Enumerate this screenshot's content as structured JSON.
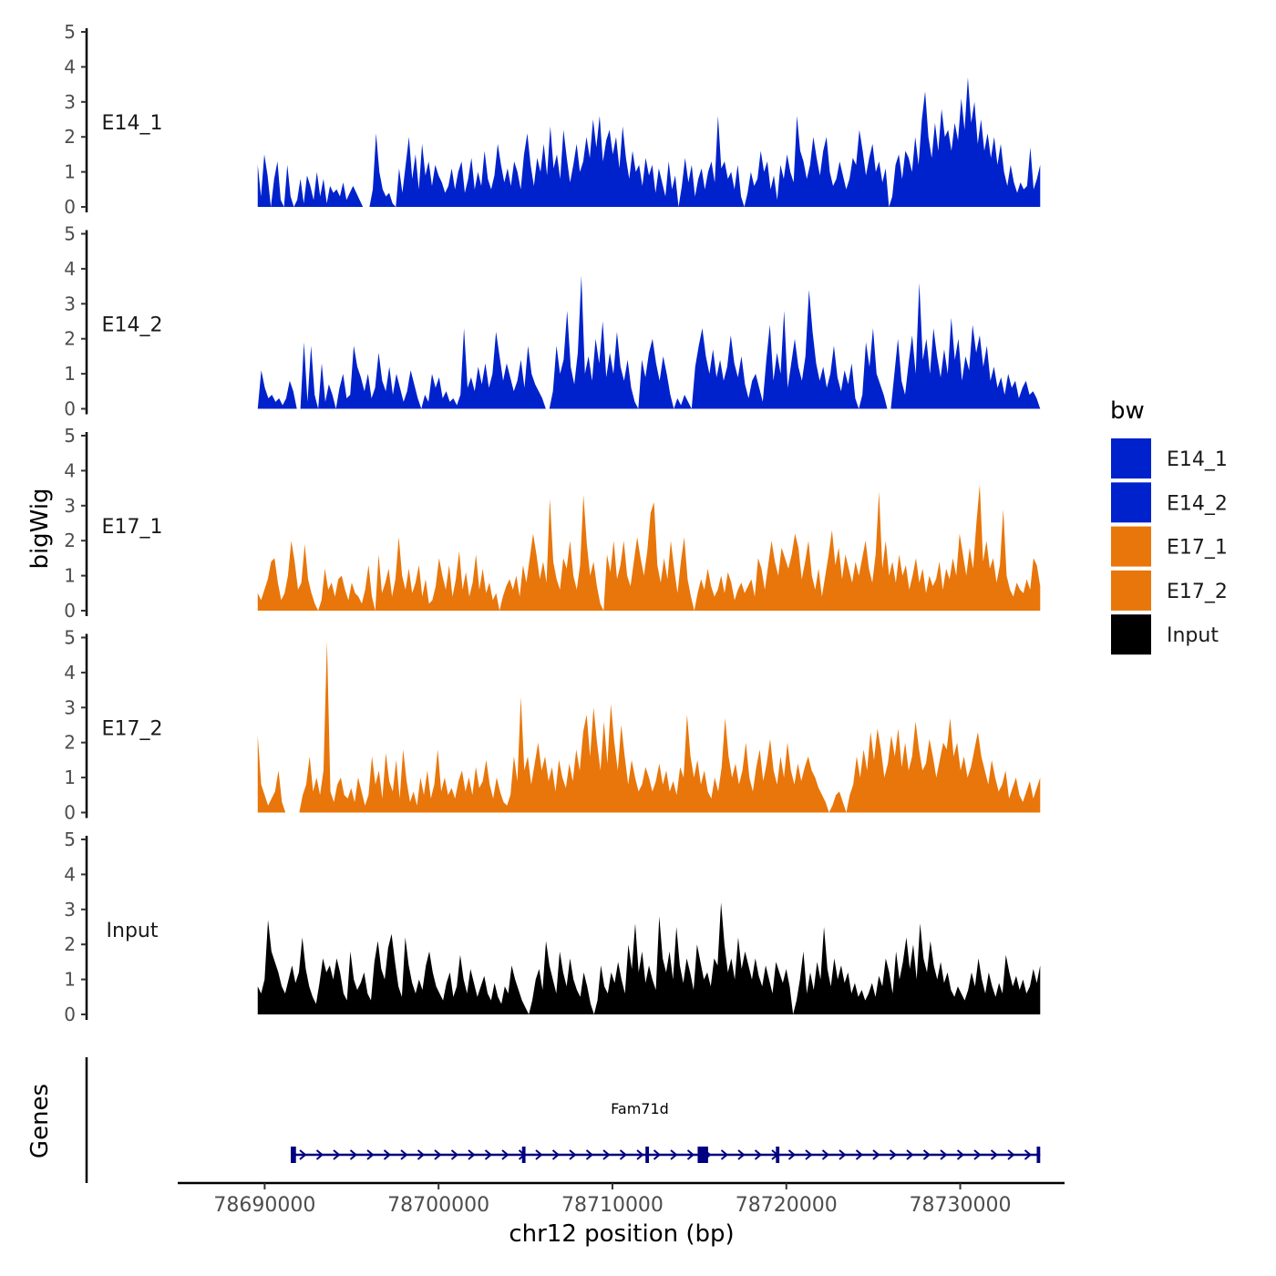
{
  "chart_data": {
    "type": "area",
    "y_axis_title": "bigWig",
    "x_axis_title": "chr12 position (bp)",
    "genes_axis_title": "Genes",
    "x_range": [
      78685000,
      78736000
    ],
    "x_ticks": [
      78690000,
      78700000,
      78710000,
      78720000,
      78730000
    ],
    "x_tick_labels": [
      "78690000",
      "78700000",
      "78710000",
      "78720000",
      "78730000"
    ],
    "y_range": [
      0,
      5
    ],
    "y_ticks": [
      0,
      1,
      2,
      3,
      4,
      5
    ],
    "y_tick_labels": [
      "0",
      "1",
      "2",
      "3",
      "4",
      "5"
    ],
    "legend": {
      "title": "bw",
      "entries": [
        {
          "name": "E14_1",
          "color": "#0022CC"
        },
        {
          "name": "E14_2",
          "color": "#0022CC"
        },
        {
          "name": "E17_1",
          "color": "#E8760A"
        },
        {
          "name": "E17_2",
          "color": "#E8760A"
        },
        {
          "name": "Input",
          "color": "#000000"
        }
      ]
    },
    "tracks": [
      {
        "name": "E14_1",
        "label": "E14_1",
        "color": "#0022CC",
        "x_start": 78689600,
        "x_end": 78734600,
        "values": [
          1.2,
          0.3,
          1.5,
          0.9,
          0.0,
          0.8,
          1.3,
          0.2,
          0.0,
          1.2,
          0.3,
          0.0,
          0.2,
          0.8,
          0.1,
          0.9,
          0.6,
          0.2,
          1.0,
          0.3,
          0.8,
          0.1,
          0.6,
          0.4,
          0.5,
          0.3,
          0.7,
          0.2,
          0.4,
          0.6,
          0.4,
          0.2,
          0.0,
          0.0,
          0.0,
          0.5,
          2.1,
          1.0,
          0.5,
          0.3,
          0.4,
          0.1,
          0.0,
          1.1,
          0.4,
          1.2,
          2.0,
          0.8,
          1.5,
          0.5,
          1.8,
          0.9,
          1.3,
          0.6,
          1.2,
          0.9,
          0.7,
          0.4,
          0.6,
          1.1,
          0.5,
          1.0,
          1.3,
          0.4,
          0.8,
          1.4,
          0.5,
          1.0,
          0.6,
          1.6,
          0.8,
          0.5,
          0.9,
          1.8,
          1.2,
          0.7,
          1.1,
          0.6,
          1.3,
          1.0,
          0.5,
          1.5,
          2.1,
          1.2,
          0.6,
          1.4,
          1.0,
          1.8,
          0.9,
          2.3,
          1.1,
          1.5,
          0.8,
          2.2,
          1.4,
          0.7,
          1.2,
          1.8,
          1.0,
          1.3,
          2.0,
          1.4,
          2.5,
          1.7,
          2.6,
          1.3,
          1.9,
          2.2,
          1.5,
          2.0,
          1.1,
          2.3,
          1.4,
          0.8,
          1.6,
          1.0,
          1.2,
          0.6,
          1.4,
          0.9,
          1.2,
          0.4,
          1.1,
          0.7,
          0.3,
          1.3,
          0.5,
          0.9,
          0.0,
          0.6,
          1.4,
          0.7,
          1.2,
          0.3,
          0.8,
          1.1,
          0.5,
          1.0,
          1.3,
          0.7,
          2.6,
          1.1,
          1.3,
          0.8,
          1.0,
          0.5,
          1.2,
          0.3,
          0.0,
          0.4,
          1.0,
          0.6,
          0.8,
          1.6,
          1.0,
          1.3,
          0.5,
          0.9,
          0.2,
          1.2,
          0.8,
          1.5,
          1.0,
          0.7,
          2.6,
          1.6,
          1.3,
          0.8,
          1.2,
          2.0,
          1.4,
          0.9,
          1.6,
          2.0,
          1.0,
          0.6,
          0.8,
          1.3,
          0.9,
          0.5,
          0.8,
          1.4,
          1.2,
          2.2,
          1.6,
          0.9,
          1.4,
          1.8,
          1.0,
          1.3,
          0.7,
          1.1,
          0.0,
          0.3,
          1.2,
          1.5,
          0.8,
          1.6,
          1.4,
          1.0,
          2.0,
          1.2,
          2.5,
          3.3,
          2.0,
          1.4,
          2.4,
          1.6,
          2.8,
          2.0,
          2.2,
          1.6,
          2.4,
          1.9,
          3.1,
          2.2,
          3.7,
          2.4,
          3.0,
          1.8,
          2.5,
          1.6,
          2.1,
          1.4,
          2.0,
          1.2,
          1.8,
          1.0,
          0.6,
          1.2,
          0.7,
          0.4,
          0.7,
          0.5,
          0.6,
          1.7,
          0.5,
          0.8,
          1.2
        ]
      },
      {
        "name": "E14_2",
        "label": "E14_2",
        "color": "#0022CC",
        "x_start": 78689600,
        "x_end": 78734600,
        "values": [
          0.0,
          1.1,
          0.6,
          0.3,
          0.4,
          0.2,
          0.3,
          0.1,
          0.3,
          0.8,
          0.5,
          0.0,
          0.0,
          1.9,
          0.2,
          1.8,
          0.4,
          0.0,
          1.3,
          0.2,
          0.7,
          0.4,
          0.0,
          0.6,
          1.0,
          0.3,
          0.4,
          1.8,
          1.2,
          0.9,
          0.5,
          1.0,
          0.3,
          0.6,
          1.6,
          0.8,
          0.5,
          1.2,
          0.4,
          1.0,
          0.6,
          0.2,
          0.5,
          1.1,
          0.7,
          0.3,
          0.0,
          0.4,
          0.2,
          1.0,
          0.6,
          0.9,
          0.3,
          0.5,
          0.2,
          0.3,
          0.1,
          0.4,
          2.3,
          0.6,
          0.9,
          0.5,
          1.2,
          0.7,
          1.3,
          0.6,
          1.0,
          2.2,
          1.5,
          0.8,
          1.3,
          0.9,
          0.5,
          0.8,
          1.4,
          0.6,
          1.8,
          1.0,
          0.7,
          0.5,
          0.3,
          0.0,
          0.0,
          0.5,
          1.8,
          1.0,
          1.4,
          2.8,
          1.2,
          0.7,
          1.6,
          3.8,
          1.0,
          1.5,
          0.8,
          2.0,
          1.3,
          2.5,
          0.9,
          1.6,
          1.0,
          2.2,
          1.2,
          0.8,
          1.4,
          0.6,
          0.2,
          0.0,
          1.4,
          0.9,
          1.6,
          2.0,
          1.3,
          0.8,
          1.5,
          1.0,
          0.4,
          0.0,
          0.3,
          0.1,
          0.4,
          0.2,
          0.0,
          1.2,
          1.8,
          2.3,
          1.5,
          1.0,
          1.7,
          0.9,
          1.4,
          0.8,
          1.2,
          2.1,
          1.3,
          0.9,
          1.5,
          0.7,
          0.3,
          0.8,
          1.0,
          0.6,
          0.2,
          1.4,
          2.4,
          0.8,
          1.6,
          1.0,
          2.8,
          0.6,
          1.3,
          2.0,
          1.2,
          0.8,
          1.5,
          3.4,
          2.2,
          1.3,
          0.8,
          1.2,
          0.6,
          1.0,
          1.8,
          0.9,
          0.5,
          1.1,
          0.7,
          1.3,
          0.3,
          0.0,
          0.4,
          1.9,
          1.2,
          2.3,
          1.0,
          0.7,
          0.4,
          0.0,
          0.0,
          1.0,
          2.0,
          0.8,
          0.4,
          1.3,
          2.1,
          1.0,
          3.6,
          1.4,
          2.0,
          1.0,
          2.3,
          1.5,
          0.9,
          1.7,
          1.0,
          2.6,
          1.4,
          2.0,
          0.8,
          1.5,
          1.1,
          2.4,
          1.6,
          2.1,
          1.2,
          1.8,
          0.8,
          1.2,
          0.6,
          0.9,
          0.4,
          1.0,
          0.6,
          0.8,
          0.3,
          0.6,
          0.8,
          0.4,
          0.5,
          0.3,
          0.0
        ]
      },
      {
        "name": "E17_1",
        "label": "E17_1",
        "color": "#E8760A",
        "x_start": 78689600,
        "x_end": 78734600,
        "values": [
          0.5,
          0.3,
          0.6,
          0.9,
          1.4,
          1.5,
          0.8,
          0.3,
          0.5,
          1.0,
          2.0,
          1.4,
          0.6,
          0.8,
          1.9,
          0.9,
          0.5,
          0.2,
          0.0,
          0.3,
          1.2,
          0.6,
          0.8,
          0.4,
          0.9,
          1.0,
          0.6,
          0.3,
          0.8,
          0.5,
          0.4,
          0.2,
          0.6,
          1.3,
          0.4,
          0.0,
          1.6,
          0.5,
          0.8,
          1.2,
          0.4,
          0.9,
          2.1,
          1.0,
          0.6,
          1.2,
          0.5,
          0.8,
          1.3,
          0.4,
          0.9,
          0.2,
          0.3,
          0.7,
          1.5,
          1.0,
          0.6,
          1.3,
          0.4,
          0.9,
          1.7,
          0.6,
          1.1,
          0.4,
          0.8,
          1.6,
          0.6,
          1.2,
          0.5,
          0.8,
          0.3,
          0.5,
          0.0,
          0.4,
          0.7,
          0.9,
          0.6,
          1.0,
          0.4,
          1.3,
          0.8,
          1.5,
          2.2,
          1.6,
          0.9,
          1.4,
          0.8,
          3.2,
          1.4,
          0.9,
          0.6,
          1.5,
          1.2,
          2.0,
          1.0,
          0.6,
          1.3,
          3.3,
          1.9,
          1.0,
          1.4,
          0.7,
          0.2,
          0.0,
          1.6,
          1.1,
          2.0,
          0.9,
          1.3,
          2.0,
          1.0,
          0.7,
          1.4,
          2.1,
          1.5,
          1.0,
          1.7,
          2.8,
          3.1,
          1.3,
          0.8,
          1.5,
          0.9,
          2.0,
          1.2,
          0.5,
          1.4,
          2.1,
          0.9,
          0.4,
          0.0,
          0.5,
          0.9,
          0.6,
          1.2,
          0.7,
          0.4,
          0.6,
          1.0,
          0.5,
          1.1,
          0.8,
          0.3,
          0.6,
          0.8,
          0.5,
          0.7,
          0.9,
          0.4,
          1.5,
          1.2,
          0.6,
          1.3,
          2.0,
          1.4,
          1.0,
          1.8,
          1.5,
          1.2,
          1.6,
          2.2,
          1.8,
          0.9,
          1.4,
          2.0,
          1.0,
          0.6,
          1.2,
          0.4,
          1.0,
          1.6,
          2.3,
          1.3,
          1.8,
          0.9,
          1.6,
          1.2,
          0.8,
          1.4,
          1.0,
          1.5,
          2.0,
          1.2,
          0.8,
          1.6,
          3.4,
          1.2,
          2.0,
          1.0,
          1.4,
          0.8,
          1.6,
          1.0,
          1.3,
          0.6,
          1.0,
          1.5,
          0.8,
          1.2,
          0.5,
          1.0,
          0.7,
          0.9,
          1.4,
          0.6,
          1.2,
          0.9,
          1.5,
          1.0,
          2.2,
          1.6,
          1.0,
          1.8,
          1.2,
          2.5,
          3.6,
          1.4,
          2.0,
          1.2,
          1.5,
          0.8,
          1.3,
          2.9,
          1.0,
          0.6,
          0.4,
          0.8,
          0.6,
          0.5,
          0.9,
          0.6,
          1.5,
          1.3,
          0.7
        ]
      },
      {
        "name": "E17_2",
        "label": "E17_2",
        "color": "#E8760A",
        "x_start": 78689600,
        "x_end": 78734600,
        "values": [
          2.2,
          0.8,
          0.5,
          0.2,
          0.4,
          0.6,
          1.2,
          0.3,
          0.0,
          0.0,
          0.0,
          0.0,
          0.0,
          0.5,
          0.8,
          1.6,
          0.6,
          1.0,
          0.5,
          1.2,
          4.9,
          0.6,
          0.3,
          0.8,
          1.0,
          0.5,
          0.4,
          0.7,
          0.3,
          1.0,
          0.6,
          0.2,
          0.5,
          1.6,
          0.8,
          1.2,
          0.4,
          1.7,
          0.9,
          0.6,
          1.5,
          0.4,
          1.8,
          0.9,
          0.3,
          0.6,
          0.2,
          1.0,
          0.5,
          1.2,
          0.4,
          0.8,
          1.8,
          0.6,
          1.0,
          0.5,
          0.7,
          0.4,
          0.9,
          1.2,
          0.6,
          1.0,
          0.5,
          1.3,
          0.7,
          0.9,
          1.5,
          0.8,
          0.4,
          1.0,
          0.6,
          0.3,
          0.2,
          0.5,
          1.6,
          0.9,
          3.3,
          1.2,
          1.6,
          0.8,
          1.4,
          2.0,
          1.2,
          1.6,
          0.9,
          1.3,
          0.6,
          1.5,
          1.0,
          0.7,
          1.4,
          0.9,
          1.8,
          1.2,
          2.3,
          2.8,
          1.6,
          3.0,
          2.0,
          1.2,
          2.6,
          1.4,
          3.1,
          2.0,
          1.2,
          2.5,
          1.6,
          0.8,
          1.5,
          1.0,
          0.6,
          0.8,
          1.3,
          1.0,
          0.6,
          0.9,
          1.4,
          0.8,
          1.2,
          0.6,
          0.9,
          0.5,
          1.3,
          1.0,
          2.8,
          1.6,
          1.0,
          1.5,
          0.8,
          1.2,
          0.6,
          0.4,
          1.0,
          0.6,
          1.3,
          2.7,
          1.6,
          1.0,
          1.4,
          0.8,
          1.2,
          2.0,
          1.0,
          0.6,
          1.3,
          1.8,
          0.9,
          1.4,
          2.1,
          1.2,
          0.8,
          1.6,
          1.0,
          2.0,
          1.2,
          0.8,
          1.4,
          0.9,
          1.3,
          1.6,
          1.2,
          1.0,
          0.7,
          0.5,
          0.3,
          0.0,
          0.2,
          0.5,
          0.6,
          0.3,
          0.0,
          0.5,
          0.8,
          1.6,
          1.0,
          1.8,
          1.2,
          2.3,
          1.5,
          2.4,
          1.8,
          1.0,
          1.4,
          2.2,
          1.6,
          2.4,
          1.3,
          2.0,
          1.2,
          1.6,
          2.6,
          1.8,
          1.2,
          1.4,
          2.1,
          1.6,
          1.0,
          1.5,
          2.0,
          1.8,
          2.7,
          1.6,
          2.0,
          1.2,
          1.6,
          1.0,
          1.3,
          1.8,
          2.3,
          1.6,
          1.2,
          0.8,
          1.5,
          1.0,
          0.6,
          0.8,
          1.2,
          0.4,
          0.7,
          1.0,
          0.5,
          0.3,
          0.6,
          0.9,
          0.4,
          0.7,
          1.0
        ]
      },
      {
        "name": "Input",
        "label": "Input",
        "color": "#000000",
        "x_start": 78689600,
        "x_end": 78734600,
        "values": [
          0.8,
          0.6,
          1.0,
          2.7,
          1.8,
          1.5,
          1.2,
          0.8,
          0.6,
          1.0,
          1.4,
          0.9,
          1.2,
          2.2,
          1.3,
          0.8,
          0.5,
          0.3,
          0.9,
          1.6,
          1.2,
          1.4,
          1.0,
          1.6,
          1.2,
          0.6,
          0.4,
          1.8,
          1.0,
          0.7,
          0.9,
          1.2,
          0.6,
          0.4,
          1.5,
          2.1,
          1.3,
          1.0,
          1.9,
          2.3,
          1.5,
          0.8,
          0.5,
          2.2,
          1.4,
          0.9,
          0.6,
          1.0,
          0.7,
          1.4,
          1.8,
          1.2,
          0.8,
          0.6,
          0.4,
          0.9,
          1.2,
          0.5,
          0.8,
          1.7,
          1.0,
          0.6,
          1.3,
          0.9,
          0.5,
          0.8,
          1.1,
          0.6,
          0.4,
          0.9,
          0.5,
          0.3,
          0.8,
          0.6,
          1.4,
          1.0,
          0.7,
          0.4,
          0.2,
          0.0,
          0.4,
          1.0,
          1.3,
          0.7,
          2.1,
          1.4,
          1.0,
          0.6,
          1.8,
          1.2,
          0.8,
          1.6,
          1.0,
          0.7,
          0.5,
          1.2,
          0.8,
          0.3,
          0.0,
          0.4,
          1.4,
          0.8,
          0.6,
          1.2,
          0.9,
          1.5,
          1.0,
          0.6,
          2.0,
          1.3,
          2.6,
          1.2,
          1.8,
          0.9,
          1.4,
          1.0,
          0.7,
          2.8,
          1.6,
          1.2,
          1.8,
          1.0,
          2.5,
          1.4,
          0.9,
          1.6,
          1.2,
          0.7,
          2.0,
          1.5,
          1.0,
          1.2,
          0.8,
          1.6,
          1.4,
          3.2,
          2.0,
          1.2,
          1.6,
          1.0,
          2.2,
          1.3,
          1.8,
          1.4,
          1.0,
          1.6,
          1.1,
          0.8,
          1.4,
          1.0,
          0.6,
          1.5,
          1.2,
          0.9,
          1.3,
          0.8,
          0.0,
          0.4,
          1.0,
          1.8,
          0.6,
          1.2,
          0.7,
          1.5,
          1.0,
          2.5,
          1.3,
          0.8,
          1.6,
          1.0,
          1.4,
          0.9,
          1.2,
          0.6,
          0.9,
          0.5,
          0.7,
          0.4,
          0.6,
          0.9,
          0.5,
          1.1,
          0.8,
          1.6,
          1.2,
          0.6,
          1.8,
          1.0,
          1.5,
          2.2,
          1.3,
          2.0,
          1.0,
          2.6,
          1.6,
          1.2,
          2.1,
          1.4,
          1.0,
          1.5,
          0.9,
          1.2,
          0.7,
          0.5,
          0.8,
          0.6,
          0.4,
          0.7,
          1.2,
          0.8,
          1.6,
          1.0,
          0.6,
          1.2,
          0.8,
          0.5,
          0.9,
          0.6,
          1.7,
          1.2,
          0.8,
          1.1,
          0.7,
          1.0,
          0.6,
          0.8,
          1.3,
          0.9,
          1.4
        ]
      }
    ],
    "gene": {
      "name": "Fam71d",
      "color": "#000080",
      "start": 78691500,
      "end": 78734600,
      "strand": "+",
      "exons": [
        [
          78691500,
          78691800
        ],
        [
          78704800,
          78705000
        ],
        [
          78711900,
          78712100
        ],
        [
          78714900,
          78715500
        ],
        [
          78719400,
          78719600
        ],
        [
          78734400,
          78734600
        ]
      ]
    }
  }
}
